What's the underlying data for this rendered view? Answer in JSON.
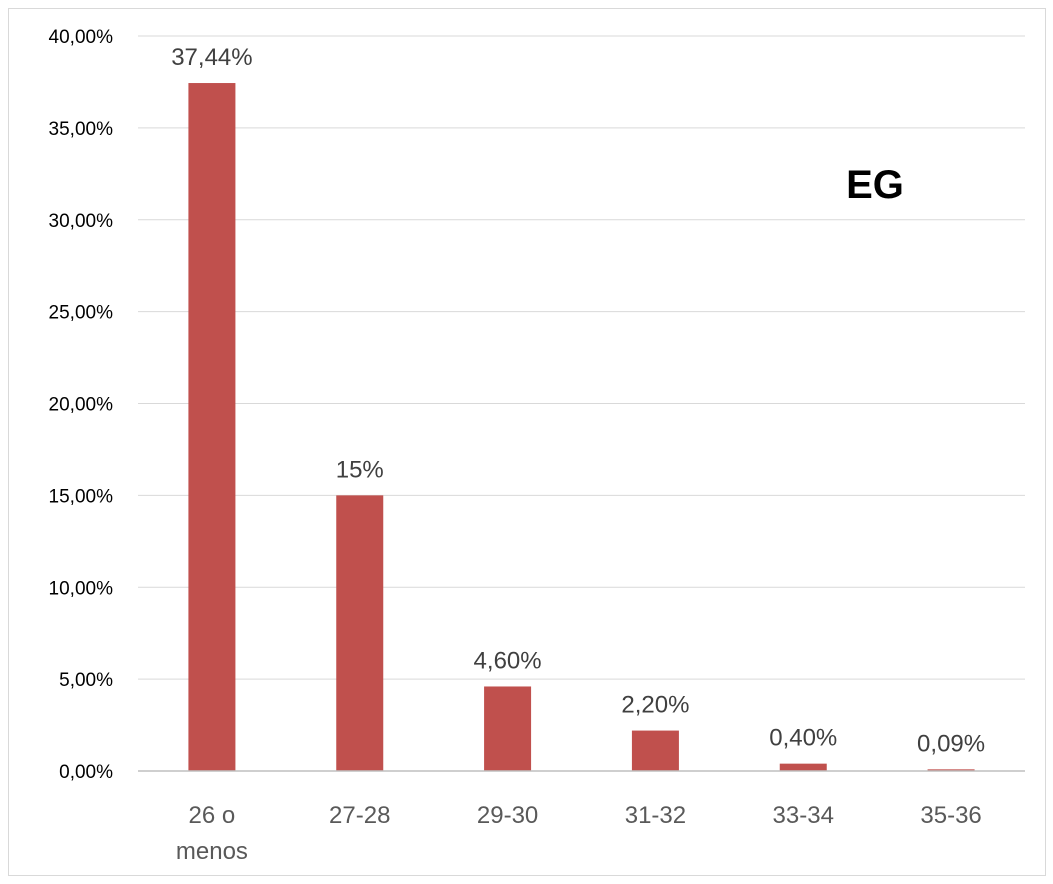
{
  "chart_data": {
    "type": "bar",
    "categories": [
      [
        "26 o",
        "menos"
      ],
      [
        "27-28"
      ],
      [
        "29-30"
      ],
      [
        "31-32"
      ],
      [
        "33-34"
      ],
      [
        "35-36"
      ]
    ],
    "values": [
      37.44,
      15,
      4.6,
      2.2,
      0.4,
      0.09
    ],
    "data_labels": [
      "37,44%",
      "15%",
      "4,60%",
      "2,20%",
      "0,40%",
      "0,09%"
    ],
    "y_ticks": [
      {
        "value": 0,
        "label": "0,00%"
      },
      {
        "value": 5,
        "label": "5,00%"
      },
      {
        "value": 10,
        "label": "10,00%"
      },
      {
        "value": 15,
        "label": "15,00%"
      },
      {
        "value": 20,
        "label": "20,00%"
      },
      {
        "value": 25,
        "label": "25,00%"
      },
      {
        "value": 30,
        "label": "30,00%"
      },
      {
        "value": 35,
        "label": "35,00%"
      },
      {
        "value": 40,
        "label": "40,00%"
      }
    ],
    "ylim": [
      0,
      40
    ],
    "grid": true,
    "legend": "none",
    "annotation": "EG",
    "bar_color": "#c0504d",
    "gridline_color": "#d9d9d9",
    "axis_color": "#bfbfbf"
  }
}
